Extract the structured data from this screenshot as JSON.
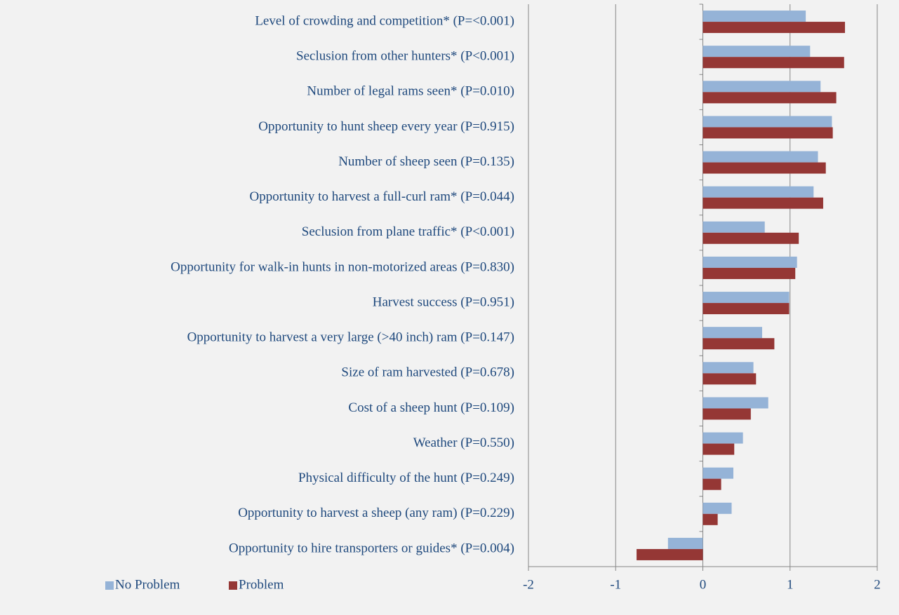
{
  "chart_data": {
    "type": "barh",
    "categories": [
      "Level of crowding and competition* (P=<0.001)",
      "Seclusion from other hunters* (P<0.001)",
      "Number of legal rams seen* (P=0.010)",
      "Opportunity to hunt sheep every year (P=0.915)",
      "Number of sheep seen (P=0.135)",
      "Opportunity to harvest a full-curl ram* (P=0.044)",
      "Seclusion from plane traffic* (P<0.001)",
      "Opportunity for walk-in hunts in non-motorized areas (P=0.830)",
      "Harvest success (P=0.951)",
      "Opportunity to harvest a very large (>40 inch) ram (P=0.147)",
      "Size of ram harvested (P=0.678)",
      "Cost of a sheep hunt (P=0.109)",
      "Weather (P=0.550)",
      "Physical difficulty of the hunt (P=0.249)",
      "Opportunity to harvest a sheep (any ram) (P=0.229)",
      "Opportunity to hire transporters or guides* (P=0.004)"
    ],
    "series": [
      {
        "name": "No Problem",
        "color": "#95b3d7",
        "values": [
          1.18,
          1.23,
          1.35,
          1.48,
          1.32,
          1.27,
          0.71,
          1.08,
          0.99,
          0.68,
          0.58,
          0.75,
          0.46,
          0.35,
          0.33,
          -0.4
        ]
      },
      {
        "name": "Problem",
        "color": "#953735",
        "values": [
          1.63,
          1.62,
          1.53,
          1.49,
          1.41,
          1.38,
          1.1,
          1.06,
          0.99,
          0.82,
          0.61,
          0.55,
          0.36,
          0.21,
          0.17,
          -0.76
        ]
      }
    ],
    "xlim": [
      -2,
      2
    ],
    "xticks": [
      -2,
      -1,
      0,
      1,
      2
    ],
    "grid": true,
    "legend": "bottom-left"
  }
}
